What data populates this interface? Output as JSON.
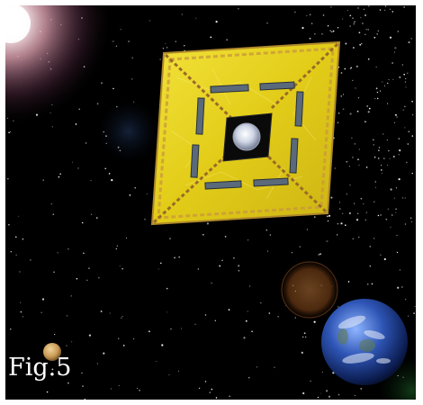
{
  "figure": {
    "caption": "Fig.5"
  },
  "colors": {
    "space": "#000000",
    "sail": "#e6d21a",
    "sail_edge": "#c9a83a",
    "panel": "#5a6a7a",
    "earth_ocean": "#2e55b5",
    "venus": "#c89a55",
    "sun": "#ffffff"
  },
  "icons": {
    "sun": "sun-glow-icon",
    "sail": "solar-sail-spacecraft-icon",
    "earth": "earth-planet-icon",
    "venus": "venus-planet-icon",
    "flare": "lens-flare-icon"
  }
}
